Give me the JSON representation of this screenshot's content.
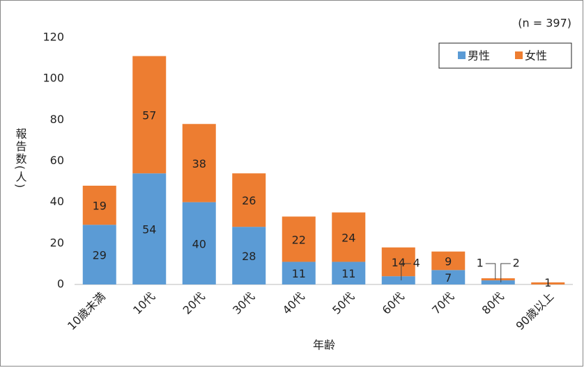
{
  "chart_data": {
    "type": "stacked_bar",
    "annotation": "(n = 397)",
    "x_label": "年齢",
    "y_label": "報告数(人)",
    "categories": [
      "10歳未満",
      "10代",
      "20代",
      "30代",
      "40代",
      "50代",
      "60代",
      "70代",
      "80代",
      "90歳以上"
    ],
    "series": [
      {
        "name": "男性",
        "color": "#5b9bd5",
        "values": [
          29,
          54,
          40,
          28,
          11,
          11,
          4,
          7,
          2,
          0
        ]
      },
      {
        "name": "女性",
        "color": "#ed7d31",
        "values": [
          19,
          57,
          38,
          26,
          22,
          24,
          14,
          9,
          1,
          1
        ]
      }
    ],
    "ylim": [
      0,
      120
    ],
    "yticks": [
      0,
      20,
      40,
      60,
      80,
      100,
      120
    ],
    "grid": false,
    "legend": "top-right"
  }
}
